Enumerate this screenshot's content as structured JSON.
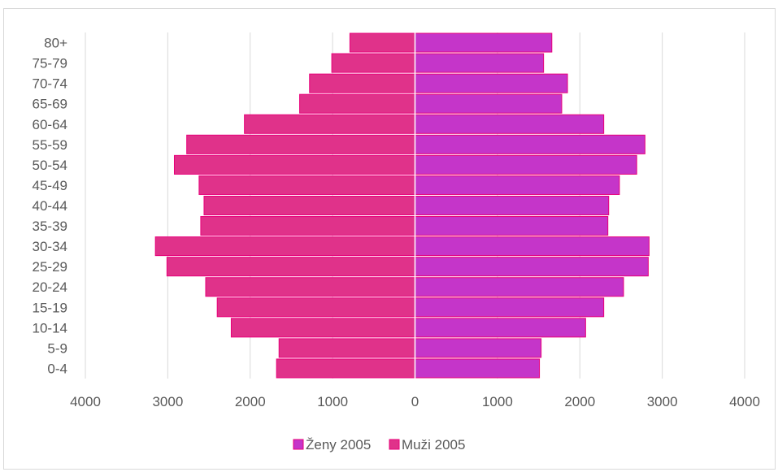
{
  "chart_data": {
    "type": "bar",
    "orientation": "horizontal",
    "layout": "population-pyramid",
    "categories": [
      "0-4",
      "5-9",
      "10-14",
      "15-19",
      "20-24",
      "25-29",
      "30-34",
      "35-39",
      "40-44",
      "45-49",
      "50-54",
      "55-59",
      "60-64",
      "65-69",
      "70-74",
      "75-79",
      "80+"
    ],
    "series": [
      {
        "name": "Ženy 2005",
        "side": "right",
        "color": "#c535c9",
        "values": [
          1510,
          1530,
          2070,
          2290,
          2530,
          2830,
          2840,
          2340,
          2350,
          2480,
          2690,
          2790,
          2290,
          1780,
          1850,
          1560,
          1660
        ]
      },
      {
        "name": "Muži 2005",
        "side": "left",
        "color": "#e0328a",
        "values": [
          1680,
          1650,
          2230,
          2400,
          2540,
          3010,
          3150,
          2600,
          2560,
          2620,
          2920,
          2770,
          2070,
          1400,
          1280,
          1010,
          790
        ]
      }
    ],
    "x_ticks": [
      "4000",
      "3000",
      "2000",
      "1000",
      "0",
      "1000",
      "2000",
      "3000",
      "4000"
    ],
    "xlim": [
      -4000,
      4000
    ],
    "grid": true,
    "legend_position": "bottom"
  }
}
